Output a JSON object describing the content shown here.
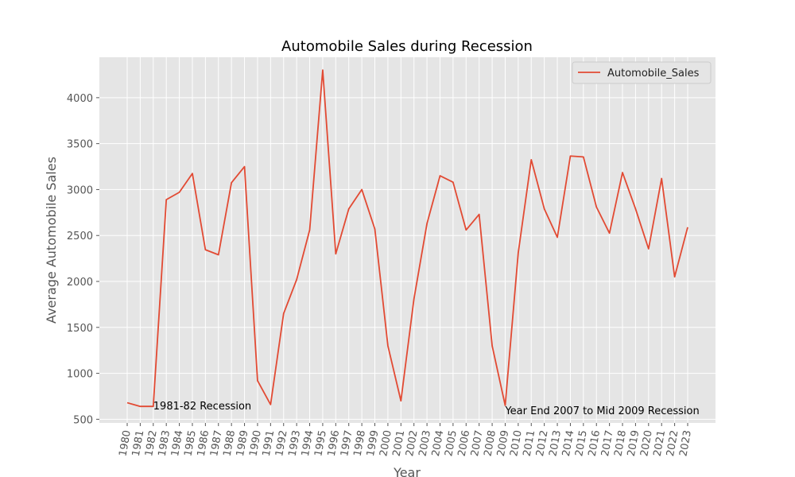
{
  "chart_data": {
    "type": "line",
    "title": "Automobile Sales during Recession",
    "xlabel": "Year",
    "ylabel": "Average Automobile Sales",
    "x": [
      1980,
      1981,
      1982,
      1983,
      1984,
      1985,
      1986,
      1987,
      1988,
      1989,
      1990,
      1991,
      1992,
      1993,
      1994,
      1995,
      1996,
      1997,
      1998,
      1999,
      2000,
      2001,
      2002,
      2003,
      2004,
      2005,
      2006,
      2007,
      2008,
      2009,
      2010,
      2011,
      2012,
      2013,
      2014,
      2015,
      2016,
      2017,
      2018,
      2019,
      2020,
      2021,
      2022,
      2023
    ],
    "series": [
      {
        "name": "Automobile_Sales",
        "color": "#E24A33",
        "values": [
          680,
          640,
          640,
          2890,
          2970,
          3175,
          2345,
          2290,
          3075,
          3250,
          920,
          660,
          1650,
          2020,
          2560,
          4300,
          2300,
          2790,
          3000,
          2570,
          1300,
          700,
          1810,
          2630,
          3150,
          3080,
          2560,
          2730,
          1300,
          650,
          2310,
          3325,
          2790,
          2480,
          3365,
          3355,
          2810,
          2525,
          3185,
          2790,
          2355,
          3120,
          2050,
          2590
        ]
      }
    ],
    "ylim": [
      460,
      4440
    ],
    "yticks": [
      500,
      1000,
      1500,
      2000,
      2500,
      3000,
      3500,
      4000
    ],
    "grid": true,
    "legend_position": "top-right",
    "annotations": [
      {
        "text": "1981-82 Recession",
        "x": 1982,
        "y": 650
      },
      {
        "text": "Year End 2007 to Mid 2009 Recession",
        "x": 2009,
        "y": 600
      }
    ]
  }
}
